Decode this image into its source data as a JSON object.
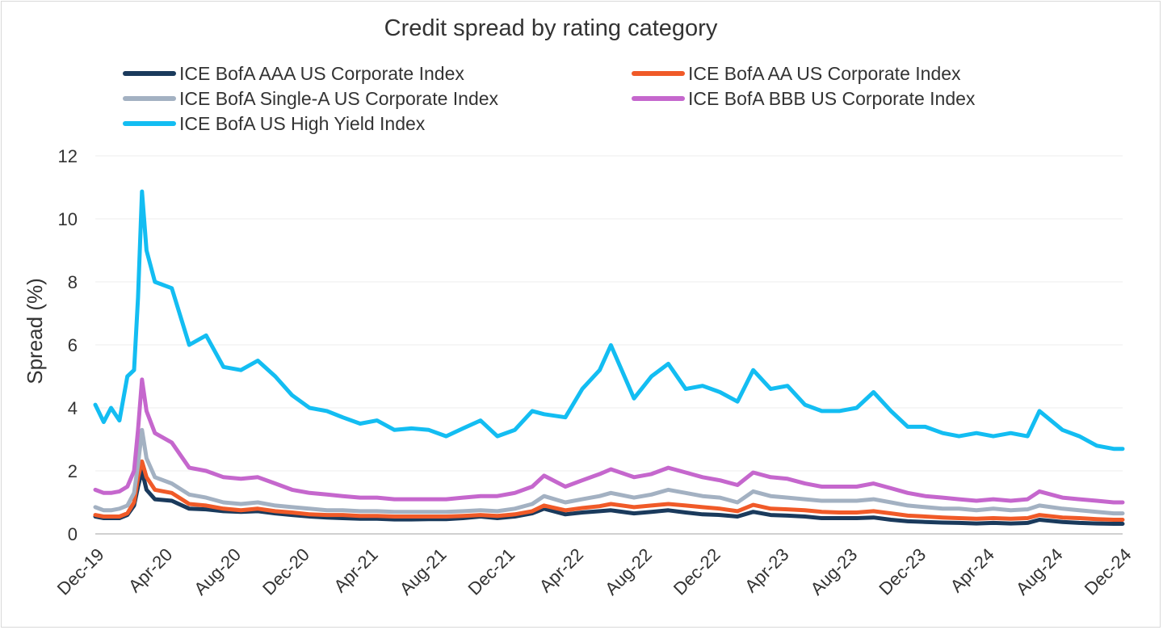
{
  "chart_data": {
    "type": "line",
    "title": "Credit spread by rating category",
    "xlabel": "",
    "ylabel": "Spread (%)",
    "ylim": [
      0,
      12
    ],
    "yticks": [
      0,
      2,
      4,
      6,
      8,
      10,
      12
    ],
    "xlim": [
      "2019-12-31",
      "2024-12-31"
    ],
    "xtick_labels": [
      "Dec-19",
      "Apr-20",
      "Aug-20",
      "Dec-20",
      "Apr-21",
      "Aug-21",
      "Dec-21",
      "Apr-22",
      "Aug-22",
      "Dec-22",
      "Apr-23",
      "Aug-23",
      "Dec-23",
      "Apr-24",
      "Aug-24",
      "Dec-24"
    ],
    "grid": "horizontal",
    "legend_position": "top",
    "dates": [
      "2019-12-31",
      "2020-01-15",
      "2020-01-28",
      "2020-02-12",
      "2020-02-26",
      "2020-03-09",
      "2020-03-16",
      "2020-03-23",
      "2020-03-31",
      "2020-04-15",
      "2020-05-15",
      "2020-06-15",
      "2020-07-15",
      "2020-08-15",
      "2020-09-15",
      "2020-10-15",
      "2020-11-15",
      "2020-12-15",
      "2021-01-15",
      "2021-02-15",
      "2021-03-15",
      "2021-04-15",
      "2021-05-15",
      "2021-06-15",
      "2021-07-15",
      "2021-08-15",
      "2021-09-15",
      "2021-10-15",
      "2021-11-15",
      "2021-12-15",
      "2022-01-15",
      "2022-02-15",
      "2022-03-08",
      "2022-04-15",
      "2022-05-15",
      "2022-06-15",
      "2022-07-05",
      "2022-08-15",
      "2022-09-15",
      "2022-10-15",
      "2022-11-15",
      "2022-12-15",
      "2023-01-15",
      "2023-02-15",
      "2023-03-15",
      "2023-04-15",
      "2023-05-15",
      "2023-06-15",
      "2023-07-15",
      "2023-08-15",
      "2023-09-15",
      "2023-10-15",
      "2023-11-15",
      "2023-12-15",
      "2024-01-15",
      "2024-02-15",
      "2024-03-15",
      "2024-04-15",
      "2024-05-15",
      "2024-06-15",
      "2024-07-15",
      "2024-08-05",
      "2024-09-15",
      "2024-10-15",
      "2024-11-15",
      "2024-12-15",
      "2024-12-31"
    ],
    "series": [
      {
        "name": "ICE BofA AAA US Corporate Index",
        "color": "#1a3a5c",
        "values": [
          0.55,
          0.5,
          0.5,
          0.5,
          0.6,
          0.9,
          1.5,
          2.0,
          1.4,
          1.1,
          1.05,
          0.8,
          0.78,
          0.72,
          0.7,
          0.72,
          0.65,
          0.6,
          0.55,
          0.52,
          0.5,
          0.48,
          0.48,
          0.46,
          0.46,
          0.47,
          0.47,
          0.5,
          0.55,
          0.5,
          0.55,
          0.65,
          0.8,
          0.62,
          0.68,
          0.72,
          0.75,
          0.65,
          0.7,
          0.75,
          0.68,
          0.62,
          0.6,
          0.55,
          0.7,
          0.6,
          0.58,
          0.55,
          0.5,
          0.5,
          0.5,
          0.52,
          0.45,
          0.4,
          0.38,
          0.36,
          0.35,
          0.33,
          0.35,
          0.33,
          0.35,
          0.45,
          0.38,
          0.35,
          0.33,
          0.32,
          0.32
        ]
      },
      {
        "name": "ICE BofA AA US Corporate Index",
        "color": "#f05a28",
        "values": [
          0.6,
          0.55,
          0.55,
          0.55,
          0.65,
          1.0,
          1.8,
          2.3,
          1.8,
          1.4,
          1.3,
          0.95,
          0.9,
          0.8,
          0.75,
          0.8,
          0.72,
          0.68,
          0.62,
          0.6,
          0.6,
          0.57,
          0.57,
          0.55,
          0.55,
          0.55,
          0.55,
          0.57,
          0.6,
          0.57,
          0.62,
          0.72,
          0.9,
          0.75,
          0.82,
          0.88,
          0.95,
          0.85,
          0.9,
          0.95,
          0.9,
          0.85,
          0.8,
          0.72,
          0.92,
          0.8,
          0.78,
          0.75,
          0.7,
          0.68,
          0.68,
          0.72,
          0.65,
          0.58,
          0.55,
          0.52,
          0.5,
          0.48,
          0.5,
          0.48,
          0.5,
          0.6,
          0.52,
          0.5,
          0.47,
          0.45,
          0.45
        ]
      },
      {
        "name": "ICE BofA Single-A US Corporate Index",
        "color": "#a3b1c2",
        "values": [
          0.85,
          0.75,
          0.75,
          0.8,
          0.9,
          1.3,
          2.2,
          3.3,
          2.4,
          1.8,
          1.6,
          1.25,
          1.15,
          1.0,
          0.95,
          1.0,
          0.9,
          0.85,
          0.8,
          0.75,
          0.75,
          0.72,
          0.72,
          0.7,
          0.7,
          0.7,
          0.7,
          0.72,
          0.75,
          0.72,
          0.8,
          0.95,
          1.2,
          1.0,
          1.1,
          1.2,
          1.3,
          1.15,
          1.25,
          1.4,
          1.3,
          1.2,
          1.15,
          1.0,
          1.35,
          1.2,
          1.15,
          1.1,
          1.05,
          1.05,
          1.05,
          1.1,
          1.0,
          0.9,
          0.85,
          0.8,
          0.8,
          0.75,
          0.8,
          0.75,
          0.78,
          0.9,
          0.8,
          0.75,
          0.7,
          0.65,
          0.65
        ]
      },
      {
        "name": "ICE BofA BBB US Corporate Index",
        "color": "#c567cd",
        "values": [
          1.4,
          1.3,
          1.3,
          1.35,
          1.5,
          2.0,
          3.3,
          4.9,
          3.9,
          3.2,
          2.9,
          2.1,
          2.0,
          1.8,
          1.75,
          1.8,
          1.6,
          1.4,
          1.3,
          1.25,
          1.2,
          1.15,
          1.15,
          1.1,
          1.1,
          1.1,
          1.1,
          1.15,
          1.2,
          1.2,
          1.3,
          1.5,
          1.85,
          1.5,
          1.7,
          1.9,
          2.05,
          1.8,
          1.9,
          2.1,
          1.95,
          1.8,
          1.7,
          1.55,
          1.95,
          1.8,
          1.75,
          1.6,
          1.5,
          1.5,
          1.5,
          1.6,
          1.45,
          1.3,
          1.2,
          1.15,
          1.1,
          1.05,
          1.1,
          1.05,
          1.1,
          1.35,
          1.15,
          1.1,
          1.05,
          1.0,
          1.0
        ]
      },
      {
        "name": "ICE BofA US High Yield Index",
        "color": "#13bdf2",
        "values": [
          4.1,
          3.55,
          4.0,
          3.6,
          5.0,
          5.2,
          7.5,
          10.87,
          9.0,
          8.0,
          7.8,
          6.0,
          6.3,
          5.3,
          5.2,
          5.5,
          5.0,
          4.4,
          4.0,
          3.9,
          3.7,
          3.5,
          3.6,
          3.3,
          3.35,
          3.3,
          3.1,
          3.35,
          3.6,
          3.1,
          3.3,
          3.9,
          3.8,
          3.7,
          4.6,
          5.2,
          5.99,
          4.3,
          5.0,
          5.4,
          4.6,
          4.7,
          4.5,
          4.2,
          5.2,
          4.6,
          4.7,
          4.1,
          3.9,
          3.9,
          4.0,
          4.5,
          3.9,
          3.4,
          3.4,
          3.2,
          3.1,
          3.2,
          3.1,
          3.2,
          3.1,
          3.9,
          3.3,
          3.1,
          2.8,
          2.7,
          2.7
        ]
      }
    ]
  }
}
